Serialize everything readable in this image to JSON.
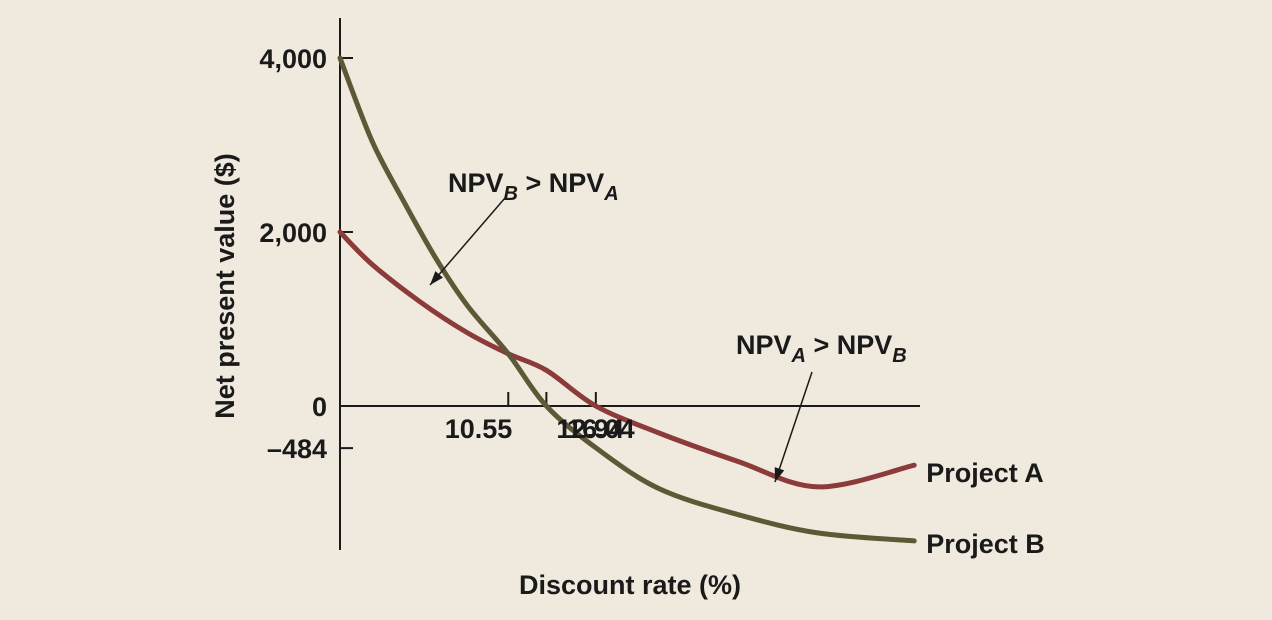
{
  "chart_data": {
    "type": "line",
    "title": "",
    "xlabel": "Discount rate (%)",
    "ylabel": "Net present value ($)",
    "xlim": [
      0,
      35
    ],
    "ylim": [
      -1700,
      4500
    ],
    "y_ticks": [
      4000,
      2000,
      0,
      -484
    ],
    "y_tick_labels": [
      "4,000",
      "2,000",
      "0",
      "–484"
    ],
    "x_ticks": [
      10.55,
      12.94,
      16.04
    ],
    "x_tick_labels": [
      "10.55",
      "12.94",
      "16.04"
    ],
    "grid": false,
    "series": [
      {
        "name": "Project A",
        "color": "#8c3a3a",
        "x": [
          0,
          2,
          5,
          8,
          10.55,
          12.94,
          16.04,
          20,
          25,
          30,
          36
        ],
        "y": [
          2000,
          1630,
          1200,
          840,
          600,
          410,
          0,
          -310,
          -640,
          -930,
          -680
        ]
      },
      {
        "name": "Project B",
        "color": "#5e5837",
        "x": [
          0,
          2,
          4,
          6,
          8,
          10.55,
          12.94,
          16.04,
          20,
          25,
          30,
          36
        ],
        "y": [
          4000,
          3050,
          2350,
          1700,
          1150,
          600,
          0,
          -480,
          -950,
          -1250,
          -1460,
          -1550
        ]
      }
    ],
    "annotations": [
      {
        "text": "NPV",
        "sub": "B",
        "rel": " > ",
        "text2": "NPV",
        "sub2": "A",
        "points_to": "Project A",
        "at_x": 5
      },
      {
        "text": "NPV",
        "sub": "A",
        "rel": " > ",
        "text2": "NPV",
        "sub2": "B",
        "points_to": "Project B",
        "at_x": 26
      }
    ]
  }
}
